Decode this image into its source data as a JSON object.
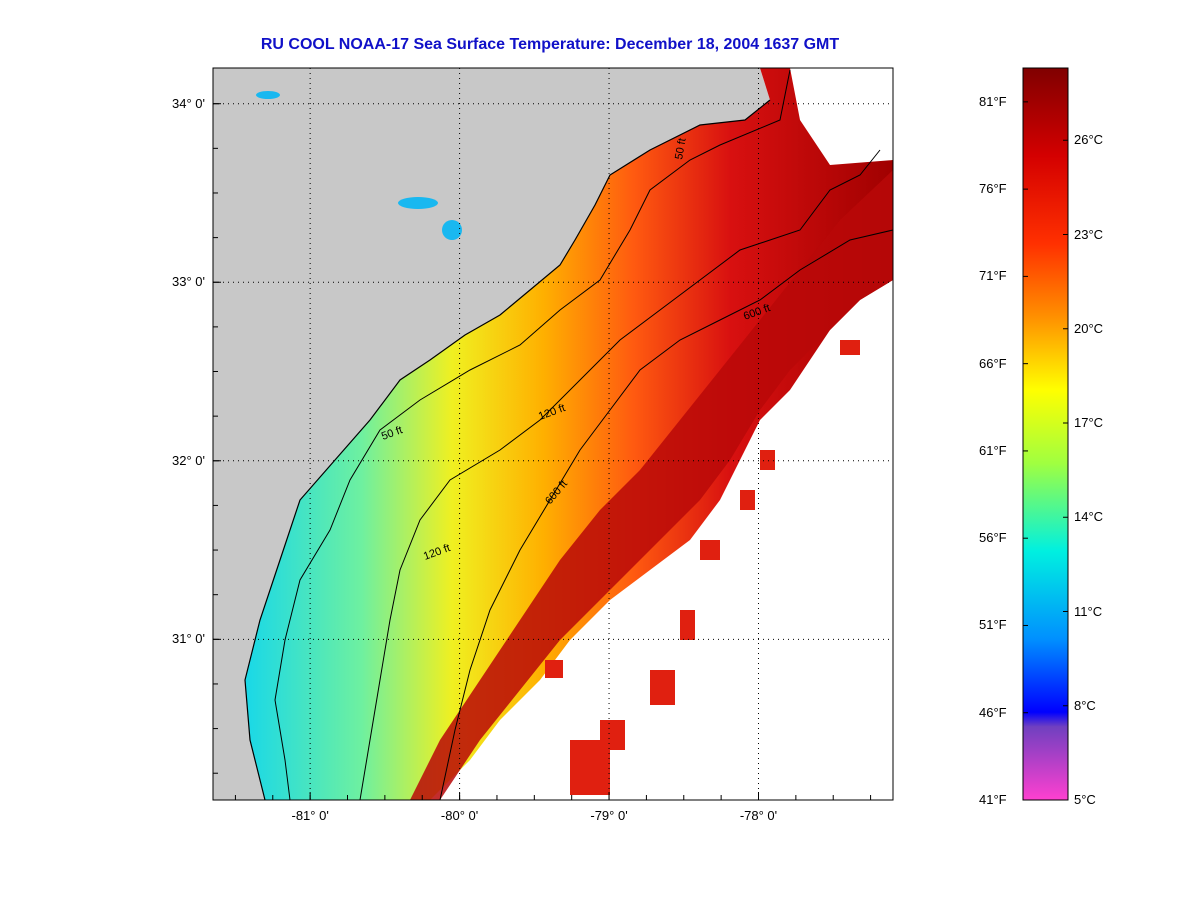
{
  "title": "RU COOL  NOAA-17  Sea Surface Temperature:  December 18, 2004 1637 GMT",
  "map": {
    "lat_ticks": [
      {
        "value": 34,
        "label": "34° 0'"
      },
      {
        "value": 33,
        "label": "33° 0'"
      },
      {
        "value": 32,
        "label": "32° 0'"
      },
      {
        "value": 31,
        "label": "31° 0'"
      }
    ],
    "lon_ticks": [
      {
        "value": -81,
        "label": "-81° 0'"
      },
      {
        "value": -80,
        "label": "-80° 0'"
      },
      {
        "value": -79,
        "label": "-79° 0'"
      },
      {
        "value": -78,
        "label": "-78° 0'"
      }
    ],
    "lat_range": [
      30.1,
      34.2
    ],
    "lon_range": [
      -81.65,
      -77.1
    ],
    "grid": "dotted",
    "contour_labels": [
      "50 ft",
      "120 ft",
      "600 ft"
    ],
    "colors": {
      "land": "#c8c8c8",
      "no_data": "#ffffff"
    }
  },
  "colorbar": {
    "fahrenheit": [
      {
        "value": 81,
        "label": "81°F"
      },
      {
        "value": 76,
        "label": "76°F"
      },
      {
        "value": 71,
        "label": "71°F"
      },
      {
        "value": 66,
        "label": "66°F"
      },
      {
        "value": 61,
        "label": "61°F"
      },
      {
        "value": 56,
        "label": "56°F"
      },
      {
        "value": 51,
        "label": "51°F"
      },
      {
        "value": 46,
        "label": "46°F"
      },
      {
        "value": 41,
        "label": "41°F"
      }
    ],
    "celsius": [
      {
        "value": 26,
        "label": "26°C"
      },
      {
        "value": 23,
        "label": "23°C"
      },
      {
        "value": 20,
        "label": "20°C"
      },
      {
        "value": 17,
        "label": "17°C"
      },
      {
        "value": 14,
        "label": "14°C"
      },
      {
        "value": 11,
        "label": "11°C"
      },
      {
        "value": 8,
        "label": "8°C"
      },
      {
        "value": 5,
        "label": "5°C"
      }
    ],
    "range_c": [
      5,
      28.3
    ]
  }
}
